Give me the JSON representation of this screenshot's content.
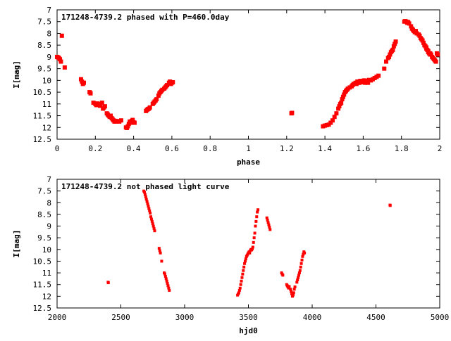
{
  "chart_data": [
    {
      "type": "scatter",
      "title": "171248-4739.2 phased with P=460.0day",
      "xlabel": "phase",
      "ylabel": "I[mag]",
      "xlim": [
        0,
        2
      ],
      "ylim": [
        12.5,
        7
      ],
      "y_inverted": true,
      "grid": false,
      "marker_color": "#ff0000",
      "x_ticks": [
        0,
        0.2,
        0.4,
        0.6,
        0.8,
        1,
        1.2,
        1.4,
        1.6,
        1.8,
        2
      ],
      "x_tick_labels": [
        "0",
        "0.2",
        "0.4",
        "0.6",
        "0.8",
        "1",
        "1.2",
        "1.4",
        "1.6",
        "1.8",
        "2"
      ],
      "y_ticks": [
        7,
        7.5,
        8,
        8.5,
        9,
        9.5,
        10,
        10.5,
        11,
        11.5,
        12,
        12.5
      ],
      "y_tick_labels": [
        "7",
        "7.5",
        "8",
        "8.5",
        "9",
        "9.5",
        "10",
        "10.5",
        "11",
        "11.5",
        "12",
        "12.5"
      ],
      "points": [
        [
          0.0,
          9.0
        ],
        [
          0.005,
          9.02
        ],
        [
          0.01,
          9.05
        ],
        [
          0.015,
          9.1
        ],
        [
          0.02,
          9.2
        ],
        [
          0.025,
          8.1
        ],
        [
          0.04,
          9.45
        ],
        [
          0.125,
          9.95
        ],
        [
          0.13,
          10.05
        ],
        [
          0.135,
          10.15
        ],
        [
          0.14,
          10.1
        ],
        [
          0.17,
          10.5
        ],
        [
          0.175,
          10.55
        ],
        [
          0.19,
          10.95
        ],
        [
          0.2,
          11.0
        ],
        [
          0.205,
          11.05
        ],
        [
          0.21,
          10.98
        ],
        [
          0.22,
          11.0
        ],
        [
          0.225,
          11.08
        ],
        [
          0.235,
          10.95
        ],
        [
          0.24,
          11.2
        ],
        [
          0.245,
          11.15
        ],
        [
          0.25,
          11.1
        ],
        [
          0.26,
          11.4
        ],
        [
          0.265,
          11.45
        ],
        [
          0.27,
          11.5
        ],
        [
          0.275,
          11.55
        ],
        [
          0.28,
          11.5
        ],
        [
          0.285,
          11.6
        ],
        [
          0.29,
          11.65
        ],
        [
          0.295,
          11.7
        ],
        [
          0.3,
          11.75
        ],
        [
          0.305,
          11.72
        ],
        [
          0.31,
          11.75
        ],
        [
          0.315,
          11.73
        ],
        [
          0.325,
          11.75
        ],
        [
          0.335,
          11.7
        ],
        [
          0.36,
          12.0
        ],
        [
          0.365,
          12.02
        ],
        [
          0.37,
          11.95
        ],
        [
          0.375,
          11.85
        ],
        [
          0.38,
          11.75
        ],
        [
          0.385,
          11.8
        ],
        [
          0.39,
          11.72
        ],
        [
          0.395,
          11.68
        ],
        [
          0.4,
          11.78
        ],
        [
          0.405,
          11.8
        ],
        [
          0.465,
          11.3
        ],
        [
          0.47,
          11.25
        ],
        [
          0.475,
          11.22
        ],
        [
          0.48,
          11.2
        ],
        [
          0.485,
          11.15
        ],
        [
          0.5,
          11.0
        ],
        [
          0.505,
          10.95
        ],
        [
          0.51,
          10.9
        ],
        [
          0.515,
          10.85
        ],
        [
          0.52,
          10.8
        ],
        [
          0.53,
          10.65
        ],
        [
          0.535,
          10.55
        ],
        [
          0.54,
          10.5
        ],
        [
          0.545,
          10.45
        ],
        [
          0.55,
          10.4
        ],
        [
          0.56,
          10.35
        ],
        [
          0.565,
          10.3
        ],
        [
          0.57,
          10.25
        ],
        [
          0.575,
          10.2
        ],
        [
          0.585,
          10.1
        ],
        [
          0.59,
          10.05
        ],
        [
          0.595,
          10.15
        ],
        [
          0.6,
          10.1
        ],
        [
          0.605,
          10.08
        ],
        [
          1.225,
          11.4
        ],
        [
          1.228,
          11.38
        ],
        [
          1.39,
          11.95
        ],
        [
          1.4,
          11.92
        ],
        [
          1.41,
          11.9
        ],
        [
          1.42,
          11.88
        ],
        [
          1.43,
          11.8
        ],
        [
          1.44,
          11.7
        ],
        [
          1.45,
          11.55
        ],
        [
          1.46,
          11.4
        ],
        [
          1.47,
          11.2
        ],
        [
          1.475,
          11.1
        ],
        [
          1.48,
          11.0
        ],
        [
          1.485,
          10.95
        ],
        [
          1.49,
          10.8
        ],
        [
          1.495,
          10.7
        ],
        [
          1.5,
          10.6
        ],
        [
          1.505,
          10.5
        ],
        [
          1.51,
          10.45
        ],
        [
          1.515,
          10.4
        ],
        [
          1.52,
          10.35
        ],
        [
          1.53,
          10.3
        ],
        [
          1.54,
          10.25
        ],
        [
          1.545,
          10.2
        ],
        [
          1.55,
          10.15
        ],
        [
          1.56,
          10.1
        ],
        [
          1.565,
          10.15
        ],
        [
          1.57,
          10.05
        ],
        [
          1.575,
          10.1
        ],
        [
          1.58,
          10.1
        ],
        [
          1.585,
          10.02
        ],
        [
          1.59,
          10.08
        ],
        [
          1.6,
          10.05
        ],
        [
          1.605,
          10.0
        ],
        [
          1.61,
          10.1
        ],
        [
          1.615,
          10.05
        ],
        [
          1.62,
          10.02
        ],
        [
          1.625,
          10.1
        ],
        [
          1.63,
          9.98
        ],
        [
          1.64,
          10.0
        ],
        [
          1.65,
          9.95
        ],
        [
          1.66,
          9.9
        ],
        [
          1.67,
          9.85
        ],
        [
          1.68,
          9.8
        ],
        [
          1.71,
          9.5
        ],
        [
          1.72,
          9.2
        ],
        [
          1.73,
          9.05
        ],
        [
          1.735,
          9.0
        ],
        [
          1.74,
          8.9
        ],
        [
          1.745,
          8.8
        ],
        [
          1.75,
          8.75
        ],
        [
          1.755,
          8.7
        ],
        [
          1.76,
          8.55
        ],
        [
          1.765,
          8.45
        ],
        [
          1.77,
          8.35
        ],
        [
          1.815,
          7.5
        ],
        [
          1.82,
          7.48
        ],
        [
          1.825,
          7.5
        ],
        [
          1.83,
          7.55
        ],
        [
          1.835,
          7.52
        ],
        [
          1.84,
          7.58
        ],
        [
          1.85,
          7.7
        ],
        [
          1.855,
          7.8
        ],
        [
          1.86,
          7.85
        ],
        [
          1.865,
          7.9
        ],
        [
          1.87,
          7.95
        ],
        [
          1.875,
          7.9
        ],
        [
          1.88,
          8.0
        ],
        [
          1.89,
          8.05
        ],
        [
          1.895,
          8.1
        ],
        [
          1.9,
          8.2
        ],
        [
          1.905,
          8.25
        ],
        [
          1.91,
          8.3
        ],
        [
          1.915,
          8.4
        ],
        [
          1.92,
          8.5
        ],
        [
          1.925,
          8.55
        ],
        [
          1.93,
          8.6
        ],
        [
          1.94,
          8.75
        ],
        [
          1.95,
          8.85
        ],
        [
          1.955,
          8.9
        ],
        [
          1.96,
          9.0
        ],
        [
          1.965,
          9.05
        ],
        [
          1.97,
          9.1
        ],
        [
          1.975,
          9.15
        ],
        [
          1.98,
          9.2
        ],
        [
          1.985,
          8.85
        ],
        [
          1.99,
          8.9
        ],
        [
          1.93,
          8.65
        ],
        [
          1.935,
          8.7
        ],
        [
          1.94,
          8.8
        ],
        [
          1.945,
          8.85
        ],
        [
          1.95,
          8.9
        ]
      ]
    },
    {
      "type": "scatter",
      "title": "171248-4739.2 not phased light curve",
      "xlabel": "hjd0",
      "ylabel": "I[mag]",
      "xlim": [
        2000,
        5000
      ],
      "ylim": [
        12.5,
        7
      ],
      "y_inverted": true,
      "grid": false,
      "marker_color": "#ff0000",
      "x_ticks": [
        2000,
        2500,
        3000,
        3500,
        4000,
        4500,
        5000
      ],
      "x_tick_labels": [
        "2000",
        "2500",
        "3000",
        "3500",
        "4000",
        "4500",
        "5000"
      ],
      "y_ticks": [
        7,
        7.5,
        8,
        8.5,
        9,
        9.5,
        10,
        10.5,
        11,
        11.5,
        12,
        12.5
      ],
      "y_tick_labels": [
        "7",
        "7.5",
        "8",
        "8.5",
        "9",
        "9.5",
        "10",
        "10.5",
        "11",
        "11.5",
        "12",
        "12.5"
      ],
      "points": [
        [
          2400,
          11.4
        ],
        [
          2402,
          11.42
        ],
        [
          2680,
          7.5
        ],
        [
          2685,
          7.55
        ],
        [
          2690,
          7.65
        ],
        [
          2695,
          7.75
        ],
        [
          2700,
          7.85
        ],
        [
          2705,
          7.95
        ],
        [
          2710,
          8.05
        ],
        [
          2715,
          8.15
        ],
        [
          2720,
          8.25
        ],
        [
          2725,
          8.35
        ],
        [
          2730,
          8.45
        ],
        [
          2735,
          8.6
        ],
        [
          2740,
          8.7
        ],
        [
          2745,
          8.8
        ],
        [
          2750,
          8.9
        ],
        [
          2755,
          9.0
        ],
        [
          2760,
          9.1
        ],
        [
          2765,
          9.2
        ],
        [
          2800,
          9.95
        ],
        [
          2805,
          10.05
        ],
        [
          2810,
          10.15
        ],
        [
          2820,
          10.5
        ],
        [
          2840,
          11.0
        ],
        [
          2845,
          11.05
        ],
        [
          2850,
          11.15
        ],
        [
          2855,
          11.25
        ],
        [
          2860,
          11.35
        ],
        [
          2865,
          11.45
        ],
        [
          2870,
          11.55
        ],
        [
          2875,
          11.65
        ],
        [
          2880,
          11.75
        ],
        [
          3415,
          11.95
        ],
        [
          3420,
          11.9
        ],
        [
          3425,
          11.85
        ],
        [
          3430,
          11.75
        ],
        [
          3435,
          11.65
        ],
        [
          3440,
          11.5
        ],
        [
          3445,
          11.35
        ],
        [
          3450,
          11.2
        ],
        [
          3455,
          11.05
        ],
        [
          3460,
          10.9
        ],
        [
          3465,
          10.75
        ],
        [
          3470,
          10.6
        ],
        [
          3475,
          10.5
        ],
        [
          3480,
          10.4
        ],
        [
          3485,
          10.3
        ],
        [
          3490,
          10.25
        ],
        [
          3495,
          10.2
        ],
        [
          3500,
          10.15
        ],
        [
          3505,
          10.1
        ],
        [
          3510,
          10.15
        ],
        [
          3515,
          10.05
        ],
        [
          3520,
          10.0
        ],
        [
          3525,
          10.02
        ],
        [
          3530,
          9.98
        ],
        [
          3535,
          9.9
        ],
        [
          3540,
          9.7
        ],
        [
          3545,
          9.5
        ],
        [
          3550,
          9.3
        ],
        [
          3555,
          9.0
        ],
        [
          3560,
          8.8
        ],
        [
          3565,
          8.6
        ],
        [
          3570,
          8.4
        ],
        [
          3575,
          8.3
        ],
        [
          3645,
          8.65
        ],
        [
          3650,
          8.75
        ],
        [
          3655,
          8.85
        ],
        [
          3660,
          8.95
        ],
        [
          3665,
          9.05
        ],
        [
          3670,
          9.15
        ],
        [
          3760,
          11.0
        ],
        [
          3765,
          11.05
        ],
        [
          3770,
          11.1
        ],
        [
          3800,
          11.5
        ],
        [
          3805,
          11.55
        ],
        [
          3810,
          11.6
        ],
        [
          3815,
          11.65
        ],
        [
          3820,
          11.58
        ],
        [
          3830,
          11.7
        ],
        [
          3835,
          11.8
        ],
        [
          3840,
          11.9
        ],
        [
          3845,
          12.0
        ],
        [
          3850,
          11.95
        ],
        [
          3855,
          11.85
        ],
        [
          3860,
          11.7
        ],
        [
          3865,
          11.6
        ],
        [
          3880,
          11.4
        ],
        [
          3885,
          11.3
        ],
        [
          3890,
          11.2
        ],
        [
          3895,
          11.1
        ],
        [
          3900,
          11.0
        ],
        [
          3905,
          10.9
        ],
        [
          3910,
          10.75
        ],
        [
          3915,
          10.6
        ],
        [
          3920,
          10.45
        ],
        [
          3925,
          10.3
        ],
        [
          3930,
          10.2
        ],
        [
          3935,
          10.1
        ],
        [
          3940,
          10.15
        ],
        [
          4610,
          8.1
        ],
        [
          4612,
          8.12
        ]
      ]
    }
  ]
}
